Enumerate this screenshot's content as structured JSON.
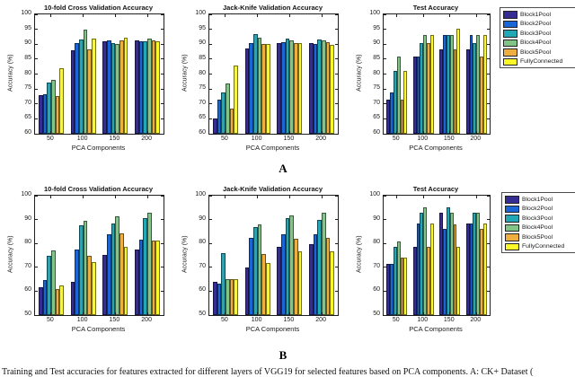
{
  "figure": {
    "background": "#ffffff",
    "axis_color": "#1f1f1f",
    "bar_edge_color": "rgba(0,0,0,0.55)"
  },
  "legend": {
    "items": [
      {
        "label": "Block1Pool",
        "color": "#352d94"
      },
      {
        "label": "Block2Pool",
        "color": "#1a66d6"
      },
      {
        "label": "Block3Pool",
        "color": "#22a7b7"
      },
      {
        "label": "Block4Pool",
        "color": "#83c586"
      },
      {
        "label": "Block5Pool",
        "color": "#eeae40"
      },
      {
        "label": "FullyConnected",
        "color": "#fbf829"
      }
    ]
  },
  "panels": {
    "a_label": "A",
    "b_label": "B"
  },
  "caption": "Training and Test accuracies for features extracted for different layers of VGG19 for selected features based on PCA components. A: CK+ Dataset (",
  "chart_data": [
    {
      "id": "a1",
      "panel": "A",
      "type": "bar",
      "title": "10-fold Cross Validation Accuracy",
      "xlabel": "PCA Components",
      "ylabel": "Accuracy (%)",
      "ylim": [
        60,
        100
      ],
      "ytick_step": 5,
      "grid": false,
      "categories": [
        "50",
        "100",
        "150",
        "200"
      ],
      "series": [
        {
          "name": "Block1Pool",
          "values": [
            73,
            88,
            91,
            91.3
          ]
        },
        {
          "name": "Block2Pool",
          "values": [
            73.2,
            90.3,
            91.4,
            91
          ]
        },
        {
          "name": "Block3Pool",
          "values": [
            77,
            91.5,
            90.3,
            91.1
          ]
        },
        {
          "name": "Block4Pool",
          "values": [
            78,
            95,
            90.2,
            91.9
          ]
        },
        {
          "name": "Block5Pool",
          "values": [
            72.5,
            88.2,
            91.3,
            91.2
          ]
        },
        {
          "name": "FullyConnected",
          "values": [
            82,
            91.8,
            92.3,
            91
          ]
        }
      ]
    },
    {
      "id": "a2",
      "panel": "A",
      "type": "bar",
      "title": "Jack-Knife Validation Accuracy",
      "xlabel": "PCA Components",
      "ylabel": "Accuracy (%)",
      "ylim": [
        60,
        100
      ],
      "ytick_step": 5,
      "grid": false,
      "categories": [
        "50",
        "100",
        "150",
        "200"
      ],
      "series": [
        {
          "name": "Block1Pool",
          "values": [
            65,
            88.7,
            90.3,
            90.4
          ]
        },
        {
          "name": "Block2Pool",
          "values": [
            71.4,
            90.4,
            90.6,
            90
          ]
        },
        {
          "name": "Block3Pool",
          "values": [
            73.7,
            93.5,
            91.8,
            91.7
          ]
        },
        {
          "name": "Block4Pool",
          "values": [
            76.9,
            92.3,
            91.3,
            91.3
          ]
        },
        {
          "name": "Block5Pool",
          "values": [
            68.4,
            90.2,
            90.4,
            90.8
          ]
        },
        {
          "name": "FullyConnected",
          "values": [
            82.8,
            90,
            90.4,
            89.9
          ]
        }
      ]
    },
    {
      "id": "a3",
      "panel": "A",
      "type": "bar",
      "title": "Test Accuracy",
      "xlabel": "PCA Components",
      "ylabel": "Accuracy (%)",
      "ylim": [
        60,
        100
      ],
      "ytick_step": 5,
      "grid": false,
      "categories": [
        "50",
        "100",
        "150",
        "200"
      ],
      "series": [
        {
          "name": "Block1Pool",
          "values": [
            71.3,
            86,
            88.2,
            88.2
          ]
        },
        {
          "name": "Block2Pool",
          "values": [
            73.7,
            86,
            93,
            93
          ]
        },
        {
          "name": "Block3Pool",
          "values": [
            81.2,
            90.3,
            93,
            90.3
          ]
        },
        {
          "name": "Block4Pool",
          "values": [
            86,
            93,
            93,
            93
          ]
        },
        {
          "name": "Block5Pool",
          "values": [
            71.3,
            90.3,
            88.2,
            86
          ]
        },
        {
          "name": "FullyConnected",
          "values": [
            81.2,
            93,
            95.3,
            93
          ]
        }
      ]
    },
    {
      "id": "b1",
      "panel": "B",
      "type": "bar",
      "title": "10-fold Cross Validation Accuracy",
      "xlabel": "PCA Components",
      "ylabel": "Accuracy (%)",
      "ylim": [
        50,
        100
      ],
      "ytick_step": 10,
      "grid": false,
      "categories": [
        "50",
        "100",
        "150",
        "200"
      ],
      "series": [
        {
          "name": "Block1Pool",
          "values": [
            61.5,
            63.8,
            75.3,
            77.3
          ]
        },
        {
          "name": "Block2Pool",
          "values": [
            64.8,
            77.3,
            83.8,
            81.5
          ]
        },
        {
          "name": "Block3Pool",
          "values": [
            74.8,
            87.5,
            88.5,
            90.5
          ]
        },
        {
          "name": "Block4Pool",
          "values": [
            77,
            89.5,
            91.5,
            92.8
          ]
        },
        {
          "name": "Block5Pool",
          "values": [
            61,
            75,
            84.2,
            81.2
          ]
        },
        {
          "name": "FullyConnected",
          "values": [
            62.5,
            72.3,
            78.5,
            81.2
          ]
        }
      ]
    },
    {
      "id": "b2",
      "panel": "B",
      "type": "bar",
      "title": "Jack-Knife Validation Accuracy",
      "xlabel": "PCA Components",
      "ylabel": "Accuracy (%)",
      "ylim": [
        50,
        100
      ],
      "ytick_step": 10,
      "grid": false,
      "categories": [
        "50",
        "100",
        "150",
        "200"
      ],
      "series": [
        {
          "name": "Block1Pool",
          "values": [
            63.8,
            70,
            78.5,
            79.8
          ]
        },
        {
          "name": "Block2Pool",
          "values": [
            63.2,
            82.5,
            83.8,
            83.8
          ]
        },
        {
          "name": "Block3Pool",
          "values": [
            76,
            86.8,
            90.5,
            90
          ]
        },
        {
          "name": "Block4Pool",
          "values": [
            65.2,
            88,
            91.8,
            92.8
          ]
        },
        {
          "name": "Block5Pool",
          "values": [
            65.2,
            75.5,
            82,
            82.5
          ]
        },
        {
          "name": "FullyConnected",
          "values": [
            65.2,
            71.8,
            76.8,
            76.8
          ]
        }
      ]
    },
    {
      "id": "b3",
      "panel": "B",
      "type": "bar",
      "title": "Test Accuracy",
      "xlabel": "PCA Components",
      "ylabel": "Accuracy (%)",
      "ylim": [
        50,
        100
      ],
      "ytick_step": 10,
      "grid": false,
      "categories": [
        "50",
        "100",
        "150",
        "200"
      ],
      "series": [
        {
          "name": "Block1Pool",
          "values": [
            71.3,
            78.5,
            93,
            88.3
          ]
        },
        {
          "name": "Block2Pool",
          "values": [
            71.3,
            88.3,
            86,
            88.3
          ]
        },
        {
          "name": "Block3Pool",
          "values": [
            78.5,
            93,
            95.3,
            93
          ]
        },
        {
          "name": "Block4Pool",
          "values": [
            81,
            95.3,
            93,
            93
          ]
        },
        {
          "name": "Block5Pool",
          "values": [
            74,
            78.5,
            88,
            86
          ]
        },
        {
          "name": "FullyConnected",
          "values": [
            74,
            88.3,
            78.5,
            88.3
          ]
        }
      ]
    }
  ]
}
